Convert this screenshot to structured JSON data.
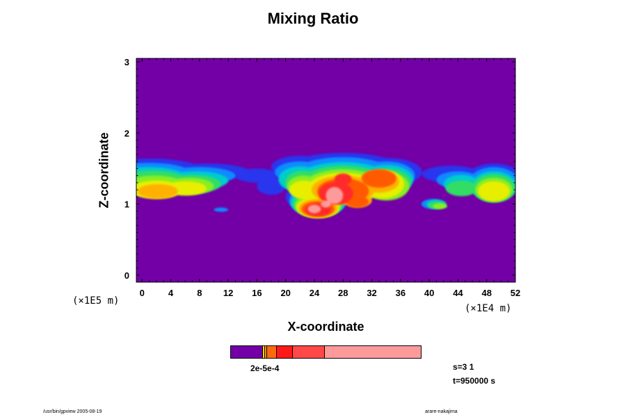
{
  "chart_data": {
    "type": "heatmap",
    "title": "Mixing Ratio",
    "xlabel": "X-coordinate",
    "ylabel": "Z-coordinate",
    "x_unit": "(×1E4 m)",
    "z_unit": "(×1E5 m)",
    "xlim": [
      -0.8,
      52
    ],
    "zlim": [
      -0.1,
      3.05
    ],
    "x_ticks": [
      "0",
      "4",
      "8",
      "12",
      "16",
      "20",
      "24",
      "28",
      "32",
      "36",
      "40",
      "44",
      "48",
      "52"
    ],
    "z_ticks": [
      "0",
      "1",
      "2",
      "3"
    ],
    "colorbar": {
      "colors": [
        "#7200a6",
        "#f0e000",
        "#ff9a00",
        "#ff6a10",
        "#ff1a1a",
        "#ff4848",
        "#ff9a9a"
      ],
      "labels": "2e-5e-4"
    },
    "info": {
      "s": "s=3 1",
      "t": "t=950000 s"
    },
    "colors": {
      "background": "#7200a6",
      "levels": [
        "#2a34ee",
        "#0a8cff",
        "#00cccc",
        "#33dd66",
        "#88ee22",
        "#e8ee00",
        "#ffb000",
        "#ff5a00",
        "#ff2a2a",
        "#ff9a9a"
      ]
    },
    "grid": false
  },
  "footer": {
    "left": "/usr/bin/gpview 2005-08-19",
    "right": "arare-nakajima"
  }
}
